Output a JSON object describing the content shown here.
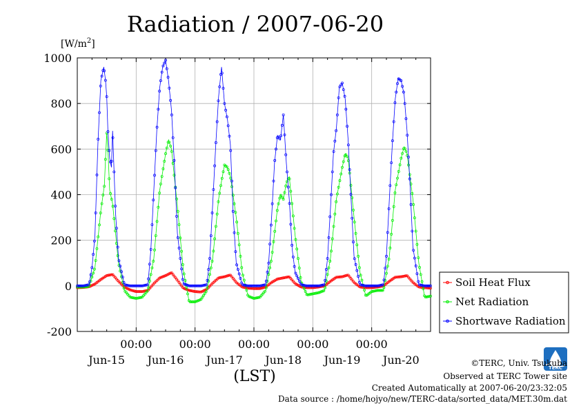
{
  "chart_data": {
    "type": "line",
    "title": "Radiation / 2007-06-20",
    "ylabel": "[W/m2]",
    "ylabel_base": "[W/m",
    "ylabel_sup": "2",
    "ylabel_end": "]",
    "xlabel": "(LST)",
    "ylim": [
      -200,
      1000
    ],
    "yticks": [
      -200,
      0,
      200,
      400,
      600,
      800,
      1000
    ],
    "xlim": [
      0,
      6.0
    ],
    "time_ticks": [
      "00:00",
      "00:00",
      "00:00",
      "00:00",
      "00:00"
    ],
    "date_labels": [
      "Jun-15",
      "Jun-16",
      "Jun-17",
      "Jun-18",
      "Jun-19",
      "Jun-20"
    ],
    "grid": true,
    "legend_position": "right",
    "series": [
      {
        "name": "Soil Heat Flux",
        "color": "#ff0000",
        "x": [
          0.0,
          0.1,
          0.2,
          0.3,
          0.4,
          0.5,
          0.6,
          0.7,
          0.8,
          0.9,
          1.0,
          1.1,
          1.2,
          1.3,
          1.4,
          1.5,
          1.6,
          1.7,
          1.8,
          1.9,
          2.0,
          2.1,
          2.2,
          2.3,
          2.4,
          2.5,
          2.6,
          2.7,
          2.8,
          2.9,
          3.0,
          3.1,
          3.2,
          3.3,
          3.4,
          3.5,
          3.6,
          3.7,
          3.8,
          3.9,
          4.0,
          4.1,
          4.2,
          4.3,
          4.4,
          4.5,
          4.6,
          4.7,
          4.8,
          4.9,
          5.0,
          5.1,
          5.2,
          5.3,
          5.4,
          5.5,
          5.6,
          5.7,
          5.8,
          5.9,
          6.0
        ],
        "y": [
          -8,
          -7,
          -4,
          8,
          28,
          45,
          50,
          20,
          -5,
          -18,
          -25,
          -25,
          -20,
          10,
          35,
          45,
          58,
          25,
          -10,
          -20,
          -25,
          -27,
          -15,
          12,
          35,
          40,
          48,
          15,
          -5,
          -10,
          -12,
          -12,
          -5,
          15,
          30,
          35,
          40,
          10,
          -5,
          -8,
          -8,
          -5,
          0,
          20,
          38,
          40,
          48,
          15,
          -5,
          -8,
          -8,
          -5,
          0,
          20,
          38,
          40,
          45,
          15,
          -5,
          -8,
          -10
        ]
      },
      {
        "name": "Net Radiation",
        "color": "#00ee00",
        "x": [
          0.0,
          0.1,
          0.2,
          0.3,
          0.4,
          0.46,
          0.48,
          0.5,
          0.52,
          0.55,
          0.6,
          0.7,
          0.8,
          0.9,
          1.0,
          1.1,
          1.2,
          1.3,
          1.4,
          1.5,
          1.55,
          1.6,
          1.7,
          1.8,
          1.9,
          2.0,
          2.1,
          2.2,
          2.3,
          2.4,
          2.45,
          2.5,
          2.55,
          2.6,
          2.7,
          2.8,
          2.9,
          3.0,
          3.1,
          3.2,
          3.3,
          3.4,
          3.45,
          3.5,
          3.55,
          3.6,
          3.7,
          3.8,
          3.9,
          4.0,
          4.1,
          4.2,
          4.3,
          4.4,
          4.5,
          4.55,
          4.6,
          4.7,
          4.8,
          4.9,
          5.0,
          5.1,
          5.2,
          5.3,
          5.4,
          5.5,
          5.55,
          5.6,
          5.7,
          5.8,
          5.9,
          6.0
        ],
        "y": [
          -5,
          -5,
          -3,
          80,
          330,
          440,
          560,
          670,
          600,
          420,
          360,
          100,
          -20,
          -50,
          -55,
          -50,
          -20,
          120,
          420,
          580,
          640,
          600,
          350,
          70,
          -70,
          -70,
          -60,
          -20,
          120,
          380,
          460,
          530,
          520,
          480,
          300,
          60,
          -45,
          -55,
          -50,
          -20,
          120,
          340,
          400,
          380,
          450,
          480,
          220,
          20,
          -40,
          -35,
          -30,
          -20,
          120,
          380,
          520,
          580,
          560,
          300,
          60,
          -45,
          -25,
          -20,
          -20,
          130,
          420,
          560,
          610,
          580,
          380,
          100,
          -50,
          -45
        ]
      },
      {
        "name": "Shortwave Radiation",
        "color": "#0000ff",
        "x": [
          0.0,
          0.1,
          0.2,
          0.25,
          0.3,
          0.35,
          0.4,
          0.45,
          0.48,
          0.5,
          0.52,
          0.55,
          0.58,
          0.6,
          0.65,
          0.7,
          0.8,
          0.9,
          1.0,
          1.1,
          1.2,
          1.25,
          1.3,
          1.35,
          1.4,
          1.45,
          1.5,
          1.55,
          1.6,
          1.65,
          1.7,
          1.8,
          1.9,
          2.0,
          2.1,
          2.2,
          2.25,
          2.3,
          2.35,
          2.4,
          2.45,
          2.5,
          2.55,
          2.6,
          2.65,
          2.7,
          2.8,
          2.9,
          3.0,
          3.1,
          3.2,
          3.25,
          3.3,
          3.35,
          3.4,
          3.45,
          3.5,
          3.55,
          3.6,
          3.65,
          3.7,
          3.8,
          3.9,
          4.0,
          4.1,
          4.2,
          4.25,
          4.3,
          4.35,
          4.4,
          4.45,
          4.5,
          4.55,
          4.6,
          4.65,
          4.7,
          4.8,
          4.9,
          5.0,
          5.1,
          5.2,
          5.25,
          5.3,
          5.35,
          5.4,
          5.45,
          5.5,
          5.55,
          5.6,
          5.65,
          5.7,
          5.8,
          5.9,
          6.0
        ],
        "y": [
          0,
          0,
          5,
          80,
          220,
          620,
          900,
          960,
          900,
          830,
          680,
          560,
          520,
          680,
          320,
          120,
          5,
          0,
          0,
          0,
          5,
          160,
          420,
          680,
          870,
          960,
          990,
          900,
          770,
          530,
          230,
          10,
          0,
          0,
          0,
          5,
          120,
          360,
          610,
          830,
          960,
          800,
          730,
          620,
          300,
          100,
          5,
          0,
          0,
          0,
          5,
          100,
          300,
          540,
          660,
          640,
          750,
          540,
          380,
          160,
          60,
          5,
          0,
          0,
          0,
          5,
          120,
          340,
          580,
          690,
          870,
          890,
          820,
          640,
          380,
          130,
          5,
          0,
          0,
          0,
          5,
          130,
          380,
          620,
          820,
          910,
          900,
          840,
          680,
          450,
          170,
          5,
          0,
          0
        ]
      }
    ]
  },
  "legend": {
    "items": [
      "Soil Heat Flux",
      "Net Radiation",
      "Shortwave Radiation"
    ]
  },
  "footer": {
    "copyright": "©TERC, Univ. Tsukuba",
    "observed": "Observed at TERC Tower site",
    "created": "Created Automatically at 2007-06-20/23:32:05",
    "source": "Data source : /home/hojyo/new/TERC-data/sorted_data/MET.30m.dat"
  },
  "logo": {
    "icon": "terc-logo-icon",
    "text": "TERC"
  }
}
